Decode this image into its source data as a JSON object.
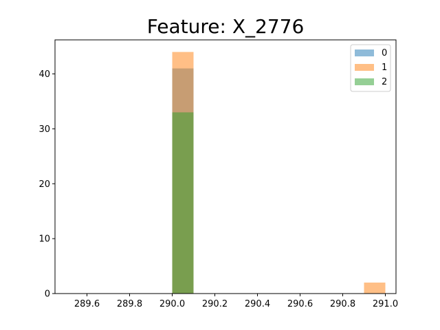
{
  "chart_data": {
    "type": "bar",
    "title": "Feature: X_2776",
    "xlabel": "",
    "ylabel": "",
    "xlim": [
      289.45,
      291.05
    ],
    "ylim": [
      0,
      46.2
    ],
    "x_ticks": [
      289.6,
      289.8,
      290.0,
      290.2,
      290.4,
      290.6,
      290.8,
      291.0
    ],
    "x_tick_labels": [
      "289.6",
      "289.8",
      "290.0",
      "290.2",
      "290.4",
      "290.6",
      "290.8",
      "291.0"
    ],
    "y_ticks": [
      0,
      10,
      20,
      30,
      40
    ],
    "y_tick_labels": [
      "0",
      "10",
      "20",
      "30",
      "40"
    ],
    "grid": false,
    "legend_position": "top-right",
    "series": [
      {
        "name": "0",
        "color": "#1f77b4",
        "opacity": 0.5,
        "bins": [
          {
            "x0": 290.0,
            "x1": 290.1,
            "value": 41
          }
        ]
      },
      {
        "name": "1",
        "color": "#ff7f0e",
        "opacity": 0.5,
        "bins": [
          {
            "x0": 290.0,
            "x1": 290.1,
            "value": 44
          },
          {
            "x0": 290.9,
            "x1": 291.0,
            "value": 2
          }
        ]
      },
      {
        "name": "2",
        "color": "#2ca02c",
        "opacity": 0.5,
        "bins": [
          {
            "x0": 290.0,
            "x1": 290.1,
            "value": 33
          }
        ]
      }
    ]
  }
}
